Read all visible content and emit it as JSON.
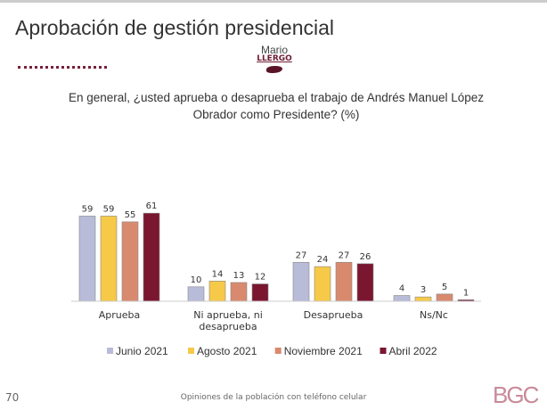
{
  "header": {
    "title": "Aprobación de gestión presidencial",
    "logo_text": "Mario LLERGO"
  },
  "footer": {
    "page_number": "70",
    "note": "Opiniones de la población con teléfono celular",
    "brand": "BGC"
  },
  "chart_data": {
    "type": "bar",
    "title": "En general, ¿usted aprueba o desaprueba el trabajo de Andrés Manuel López Obrador como Presidente? (%)",
    "categories": [
      "Aprueba",
      "Ni aprueba, ni desaprueba",
      "Desaprueba",
      "Ns/Nc"
    ],
    "series": [
      {
        "name": "Junio 2021",
        "color": "#b9bcd9",
        "values": [
          59,
          10,
          27,
          4
        ]
      },
      {
        "name": "Agosto 2021",
        "color": "#f7c948",
        "values": [
          59,
          14,
          24,
          3
        ]
      },
      {
        "name": "Noviembre 2021",
        "color": "#d98a6e",
        "values": [
          55,
          13,
          27,
          5
        ]
      },
      {
        "name": "Abril 2022",
        "color": "#7a1630",
        "values": [
          61,
          12,
          26,
          1
        ]
      }
    ],
    "ylim": [
      0,
      65
    ],
    "grid": false,
    "legend": "bottom"
  }
}
